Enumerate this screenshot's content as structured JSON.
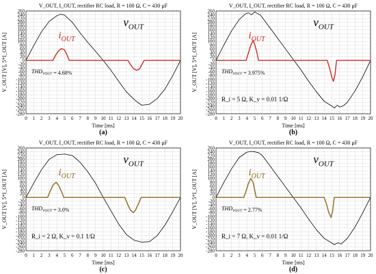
{
  "chart_data": [
    {
      "type": "line",
      "panel_label": "(a)",
      "title": "V_OUT, I_OUT, rectifier RC load, R = 100 Ω, C = 430 μF",
      "xlabel": "Time [ms]",
      "ylabel": "V_OUT [V], 5*I_OUT [A]",
      "xlim": [
        0,
        20
      ],
      "ylim": [
        -280,
        260
      ],
      "xticks": [
        "0",
        "1",
        "2",
        "3",
        "4",
        "5",
        "6",
        "7",
        "8",
        "9",
        "10",
        "11",
        "12",
        "13",
        "14",
        "15",
        "16",
        "17",
        "18",
        "19",
        "20"
      ],
      "yticks": [
        "260",
        "240",
        "220",
        "200",
        "180",
        "160",
        "140",
        "120",
        "100",
        "80",
        "60",
        "40",
        "20",
        "0",
        "-20",
        "-40",
        "-60",
        "-80",
        "-100",
        "-120",
        "-140",
        "-160",
        "-180",
        "-200",
        "-220",
        "-240",
        "-260",
        "-280"
      ],
      "thd_text": "THD",
      "thd_sub": "VOUT",
      "thd_value": " = 4.68%",
      "param_text": "",
      "series": [
        {
          "name": "v",
          "sub": "OUT",
          "color": "#000000",
          "x": [
            0,
            1,
            2,
            3,
            4,
            4.5,
            5,
            6,
            7,
            8,
            9,
            10,
            11,
            12,
            13,
            14,
            14.5,
            15,
            16,
            17,
            18,
            19,
            20
          ],
          "y": [
            0,
            78,
            150,
            205,
            235,
            243,
            238,
            200,
            145,
            95,
            48,
            0,
            -52,
            -110,
            -165,
            -205,
            -222,
            -235,
            -230,
            -200,
            -150,
            -80,
            0
          ]
        },
        {
          "name": "i",
          "sub": "OUT",
          "color": "#cc2a1e",
          "x": [
            0,
            3.5,
            3.8,
            4.2,
            4.6,
            5.0,
            5.3,
            5.6,
            13.2,
            13.5,
            13.9,
            14.3,
            14.7,
            15.0,
            15.3,
            20
          ],
          "y": [
            0,
            0,
            25,
            50,
            62,
            55,
            30,
            0,
            0,
            -20,
            -42,
            -52,
            -45,
            -22,
            0,
            0
          ]
        }
      ],
      "label_positions": {
        "v": [
          10,
          1
        ],
        "i": [
          4,
          1
        ]
      }
    },
    {
      "type": "line",
      "panel_label": "(b)",
      "title": "V_OUT, I_OUT, rectifier RC load, R = 100 Ω, C = 430 μF",
      "xlabel": "Time [ms]",
      "ylabel": "V_OUT [V], 5*I_OUT [A]",
      "xlim": [
        0,
        20
      ],
      "ylim": [
        -280,
        260
      ],
      "xticks": [
        "0",
        "1",
        "2",
        "3",
        "4",
        "5",
        "6",
        "7",
        "8",
        "9",
        "10",
        "11",
        "12",
        "13",
        "14",
        "15",
        "16",
        "17",
        "18",
        "19",
        "20"
      ],
      "yticks": [
        "260",
        "240",
        "220",
        "200",
        "180",
        "160",
        "140",
        "120",
        "100",
        "80",
        "60",
        "40",
        "20",
        "0",
        "-20",
        "-40",
        "-60",
        "-80",
        "-100",
        "-120",
        "-140",
        "-160",
        "-180",
        "-200",
        "-220",
        "-240",
        "-260",
        "-280"
      ],
      "thd_text": "THD",
      "thd_sub": "VOUT",
      "thd_value": " = 3.975%",
      "param_text": "R_i = 5 Ω, K_v = 0.01 1/Ω",
      "series": [
        {
          "name": "v",
          "sub": "OUT",
          "color": "#000000",
          "x": [
            0,
            1,
            2,
            3,
            3.8,
            4.2,
            4.6,
            5,
            5.3,
            5.7,
            6,
            7,
            8,
            9,
            10,
            11,
            12,
            13,
            14,
            15,
            15.3,
            15.7,
            16,
            16.5,
            17,
            18,
            19,
            20
          ],
          "y": [
            0,
            80,
            155,
            215,
            245,
            250,
            240,
            255,
            248,
            240,
            225,
            170,
            115,
            60,
            5,
            -50,
            -110,
            -165,
            -215,
            -240,
            -250,
            -235,
            -245,
            -238,
            -220,
            -160,
            -85,
            0
          ]
        },
        {
          "name": "i",
          "sub": "OUT",
          "color": "#cc2a1e",
          "x": [
            0,
            3.9,
            4.2,
            4.5,
            4.8,
            5.0,
            5.3,
            5.5,
            14.4,
            14.7,
            15.0,
            15.2,
            15.4,
            15.6,
            20
          ],
          "y": [
            0,
            0,
            40,
            80,
            105,
            85,
            40,
            0,
            0,
            -40,
            -90,
            -110,
            -75,
            0,
            0
          ]
        }
      ],
      "label_positions": {
        "v": [
          10,
          1
        ],
        "i": [
          4,
          1
        ]
      }
    },
    {
      "type": "line",
      "panel_label": "(c)",
      "title": "V_OUT, I_OUT, rectifier RC load, R = 100 Ω, C = 430 μF",
      "xlabel": "Time [ms]",
      "ylabel": "V_OUT [V], 5*I_OUT [A]",
      "xlim": [
        0,
        20
      ],
      "ylim": [
        -280,
        260
      ],
      "xticks": [
        "0",
        "1",
        "2",
        "3",
        "4",
        "5",
        "6",
        "7",
        "8",
        "9",
        "10",
        "11",
        "12",
        "13",
        "14",
        "15",
        "16",
        "17",
        "18",
        "19",
        "20"
      ],
      "yticks": [
        "260",
        "240",
        "220",
        "200",
        "180",
        "160",
        "140",
        "120",
        "100",
        "80",
        "60",
        "40",
        "20",
        "0",
        "-20",
        "-40",
        "-60",
        "-80",
        "-100",
        "-120",
        "-140",
        "-160",
        "-180",
        "-200",
        "-220",
        "-240",
        "-260",
        "-280"
      ],
      "thd_text": "THD",
      "thd_sub": "VOUT",
      "thd_value": " = 3.0%",
      "param_text": "R_i = 2 Ω, K_v = 0.1 1/Ω",
      "series": [
        {
          "name": "v",
          "sub": "OUT",
          "color": "#000000",
          "x": [
            0,
            1,
            2,
            3,
            4,
            5,
            6,
            7,
            8,
            9,
            10,
            11,
            12,
            13,
            14,
            15,
            16,
            17,
            18,
            19,
            20
          ],
          "y": [
            0,
            75,
            145,
            200,
            225,
            228,
            220,
            185,
            135,
            75,
            0,
            -70,
            -140,
            -195,
            -225,
            -235,
            -232,
            -200,
            -145,
            -75,
            0
          ]
        },
        {
          "name": "i",
          "sub": "OUT",
          "color": "#8a6a1a",
          "x": [
            0,
            2.8,
            3.1,
            3.5,
            3.9,
            4.2,
            4.6,
            4.9,
            12.8,
            13.1,
            13.5,
            13.9,
            14.2,
            14.6,
            14.9,
            20
          ],
          "y": [
            0,
            0,
            30,
            65,
            80,
            65,
            30,
            0,
            0,
            -30,
            -65,
            -80,
            -65,
            -30,
            0,
            0
          ]
        }
      ],
      "label_positions": {
        "v": [
          10,
          1
        ],
        "i": [
          4,
          1
        ]
      }
    },
    {
      "type": "line",
      "panel_label": "(d)",
      "title": "V_OUT, I_OUT, rectifier RC load, R = 100 Ω, C = 430 μF",
      "xlabel": "Time [ms]",
      "ylabel": "V_OUT [V], 5*I_OUT [A]",
      "xlim": [
        0,
        20
      ],
      "ylim": [
        -280,
        260
      ],
      "xticks": [
        "0",
        "1",
        "2",
        "3",
        "4",
        "5",
        "6",
        "7",
        "8",
        "9",
        "10",
        "11",
        "12",
        "13",
        "14",
        "15",
        "16",
        "17",
        "18",
        "19",
        "20"
      ],
      "yticks": [
        "260",
        "240",
        "220",
        "200",
        "180",
        "160",
        "140",
        "120",
        "100",
        "80",
        "60",
        "40",
        "20",
        "0",
        "-20",
        "-40",
        "-60",
        "-80",
        "-100",
        "-120",
        "-140",
        "-160",
        "-180",
        "-200",
        "-220",
        "-240",
        "-260",
        "-280"
      ],
      "thd_text": "THD",
      "thd_sub": "VOUT",
      "thd_value": " = 2.77%",
      "param_text": "R_i = 7 Ω, K_v = 0.01 1/Ω",
      "series": [
        {
          "name": "v",
          "sub": "OUT",
          "color": "#000000",
          "x": [
            0,
            1,
            2,
            3,
            4,
            4.6,
            5,
            5.5,
            6,
            7,
            8,
            9,
            10,
            11,
            12,
            13,
            14,
            15,
            15.3,
            15.8,
            16.2,
            17,
            18,
            19,
            20
          ],
          "y": [
            0,
            78,
            150,
            210,
            238,
            242,
            240,
            235,
            220,
            165,
            110,
            55,
            0,
            -55,
            -115,
            -170,
            -215,
            -240,
            -248,
            -238,
            -245,
            -215,
            -155,
            -80,
            0
          ]
        },
        {
          "name": "i",
          "sub": "OUT",
          "color": "#8a6a1a",
          "x": [
            0,
            3.6,
            3.9,
            4.2,
            4.5,
            4.8,
            5.0,
            5.2,
            14.0,
            14.3,
            14.6,
            14.9,
            15.1,
            15.3,
            20
          ],
          "y": [
            0,
            0,
            35,
            75,
            100,
            80,
            40,
            0,
            0,
            -35,
            -80,
            -105,
            -70,
            0,
            0
          ]
        }
      ],
      "label_positions": {
        "v": [
          10,
          1
        ],
        "i": [
          4,
          1
        ]
      }
    }
  ]
}
